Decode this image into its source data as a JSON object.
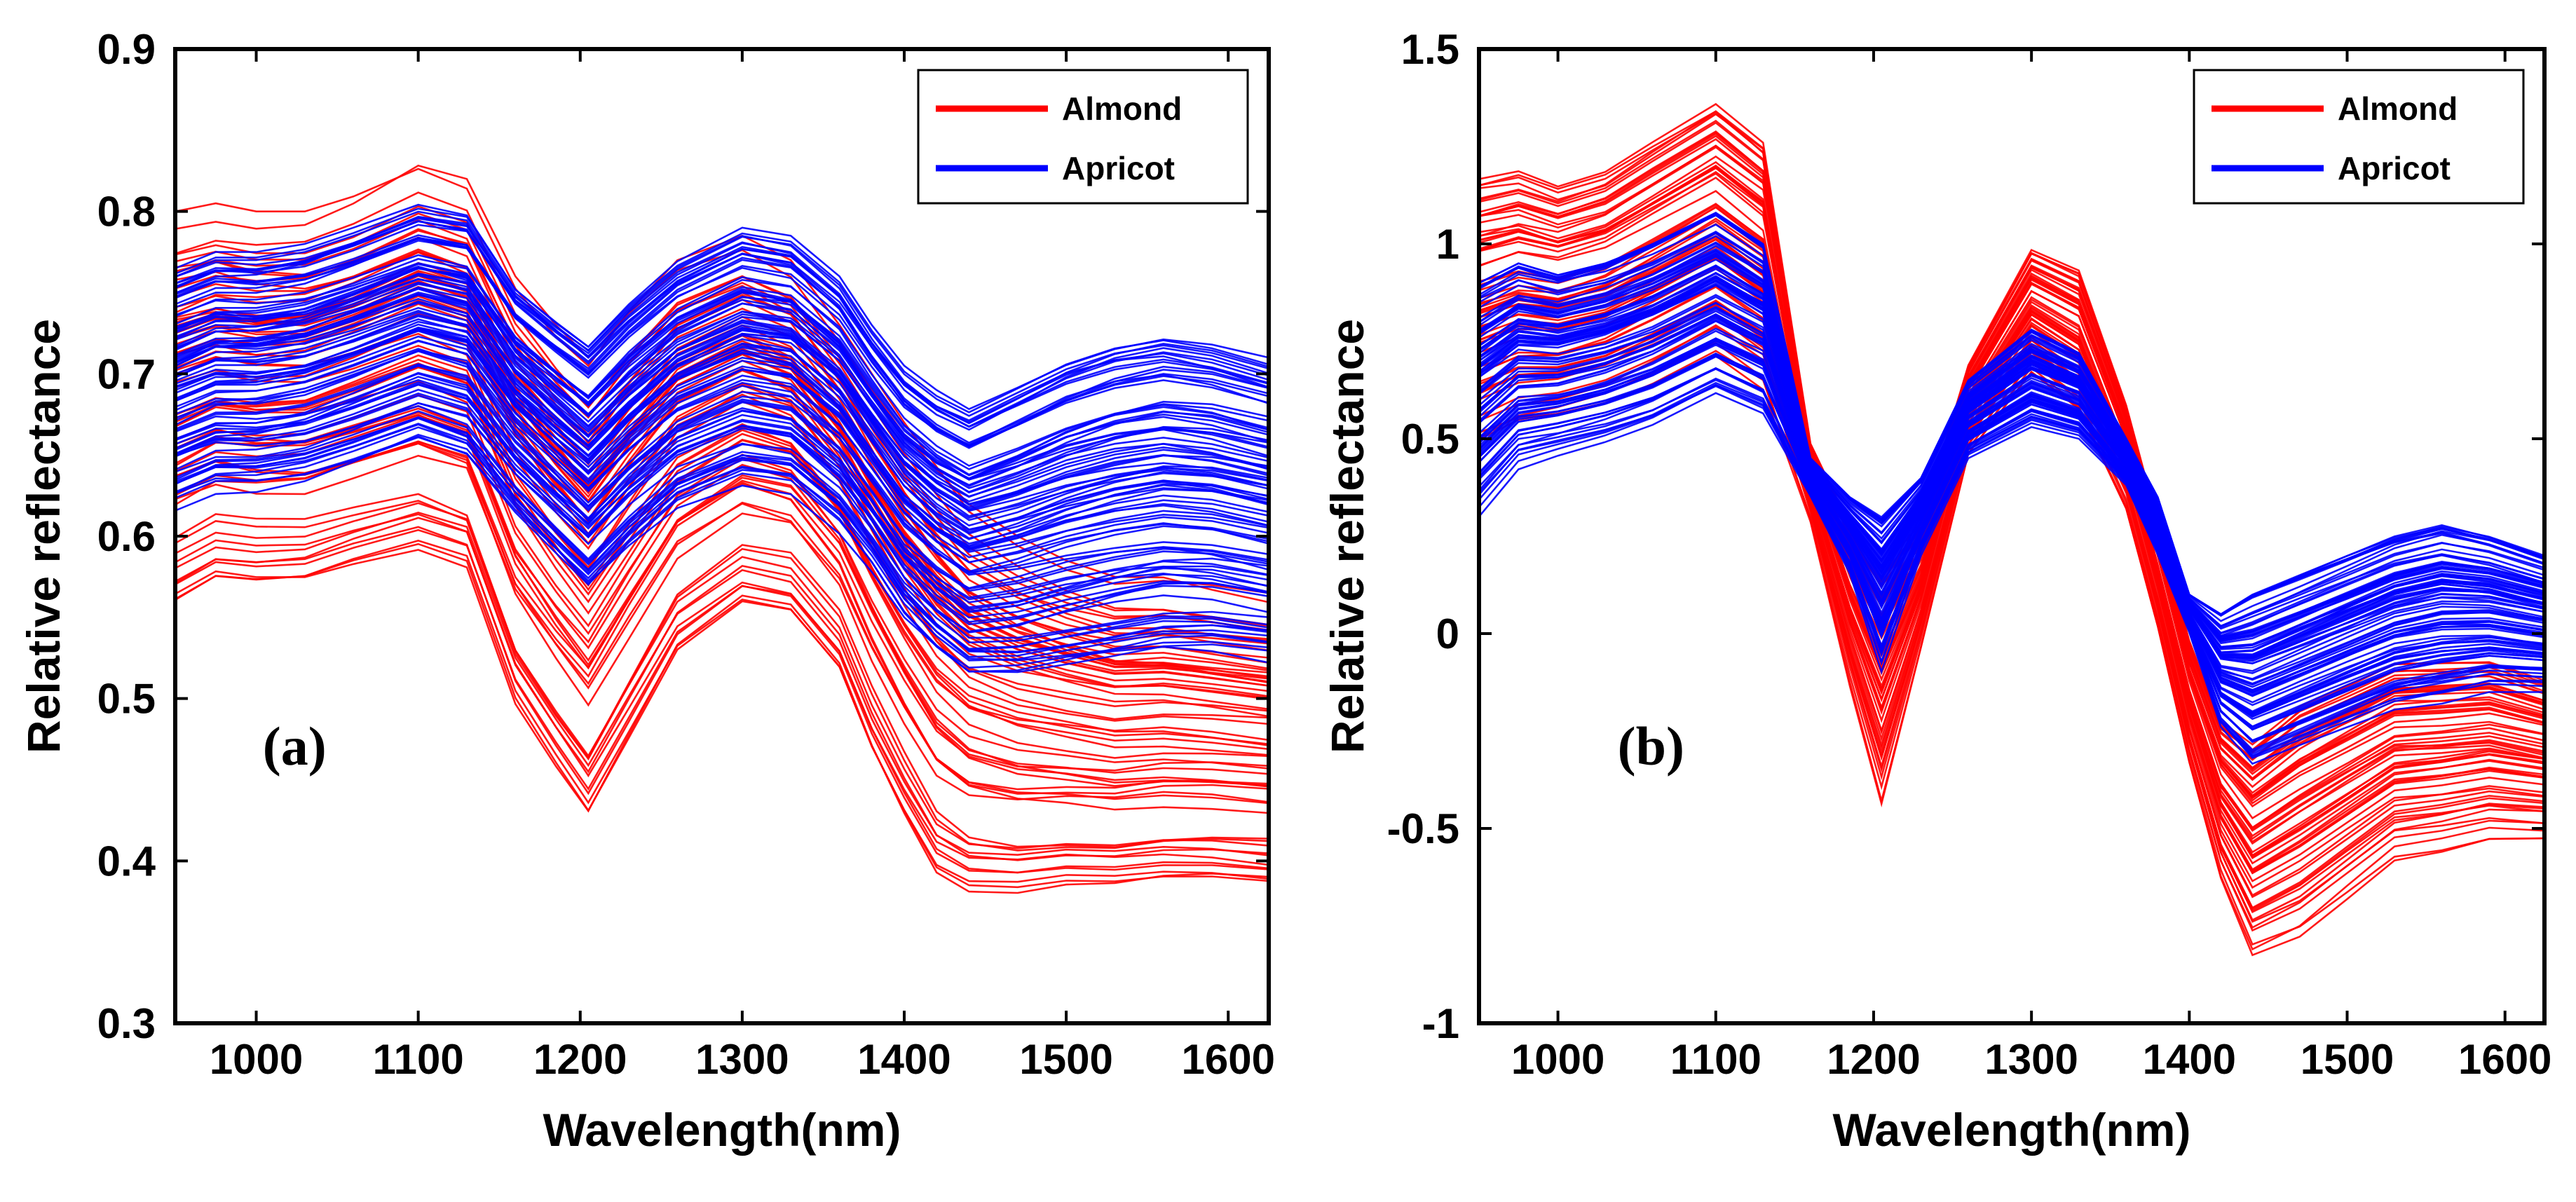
{
  "colors": {
    "almond": "#ff0000",
    "apricot": "#0000ff",
    "axis": "#000000"
  },
  "chart_data": [
    {
      "type": "line",
      "panel_label": "(a)",
      "xlabel": "Wavelength(nm)",
      "ylabel": "Relative reflectance",
      "xlim": [
        950,
        1625
      ],
      "ylim": [
        0.3,
        0.9
      ],
      "xticks": [
        1000,
        1100,
        1200,
        1300,
        1400,
        1500,
        1600
      ],
      "xtick_labels": [
        "1000",
        "1100",
        "1200",
        "1300",
        "1400",
        "1500",
        "1600"
      ],
      "yticks": [
        0.3,
        0.4,
        0.5,
        0.6,
        0.7,
        0.8,
        0.9
      ],
      "ytick_labels": [
        "0.3",
        "0.4",
        "0.5",
        "0.6",
        "0.7",
        "0.8",
        "0.9"
      ],
      "legend": {
        "position": "top-right",
        "entries": [
          "Almond",
          "Apricot"
        ]
      },
      "x": [
        950,
        975,
        1000,
        1030,
        1060,
        1100,
        1130,
        1160,
        1185,
        1205,
        1230,
        1260,
        1300,
        1330,
        1360,
        1380,
        1400,
        1420,
        1440,
        1470,
        1500,
        1530,
        1560,
        1590,
        1625
      ],
      "series": [
        {
          "name": "Almond",
          "color": "#ff0000",
          "count": 60,
          "lower": [
            0.55,
            0.565,
            0.563,
            0.565,
            0.575,
            0.585,
            0.575,
            0.49,
            0.45,
            0.42,
            0.465,
            0.52,
            0.55,
            0.545,
            0.51,
            0.46,
            0.42,
            0.385,
            0.375,
            0.375,
            0.38,
            0.38,
            0.383,
            0.383,
            0.38
          ],
          "upper": [
            0.8,
            0.805,
            0.8,
            0.8,
            0.81,
            0.83,
            0.82,
            0.76,
            0.73,
            0.71,
            0.74,
            0.77,
            0.785,
            0.77,
            0.73,
            0.7,
            0.67,
            0.645,
            0.62,
            0.6,
            0.585,
            0.575,
            0.575,
            0.57,
            0.565
          ]
        },
        {
          "name": "Apricot",
          "color": "#0000ff",
          "count": 90,
          "lower": [
            0.615,
            0.625,
            0.625,
            0.63,
            0.64,
            0.655,
            0.645,
            0.61,
            0.585,
            0.565,
            0.59,
            0.615,
            0.63,
            0.625,
            0.6,
            0.575,
            0.545,
            0.525,
            0.51,
            0.51,
            0.515,
            0.52,
            0.525,
            0.525,
            0.52
          ],
          "upper": [
            0.765,
            0.775,
            0.775,
            0.78,
            0.79,
            0.805,
            0.8,
            0.755,
            0.735,
            0.72,
            0.745,
            0.77,
            0.79,
            0.785,
            0.76,
            0.73,
            0.705,
            0.69,
            0.68,
            0.695,
            0.71,
            0.72,
            0.725,
            0.72,
            0.71
          ]
        }
      ]
    },
    {
      "type": "line",
      "panel_label": "(b)",
      "xlabel": "Wavelength(nm)",
      "ylabel": "Relative reflectance",
      "xlim": [
        950,
        1625
      ],
      "ylim": [
        -1,
        1.5
      ],
      "xticks": [
        1000,
        1100,
        1200,
        1300,
        1400,
        1500,
        1600
      ],
      "xtick_labels": [
        "1000",
        "1100",
        "1200",
        "1300",
        "1400",
        "1500",
        "1600"
      ],
      "yticks": [
        -1,
        -0.5,
        0,
        0.5,
        1,
        1.5
      ],
      "ytick_labels": [
        "-1",
        "-0.5",
        "0",
        "0.5",
        "1",
        "1.5"
      ],
      "legend": {
        "position": "top-right",
        "entries": [
          "Almond",
          "Apricot"
        ]
      },
      "x": [
        950,
        975,
        1000,
        1030,
        1060,
        1100,
        1130,
        1160,
        1185,
        1205,
        1230,
        1260,
        1300,
        1330,
        1360,
        1380,
        1400,
        1420,
        1440,
        1470,
        1500,
        1530,
        1560,
        1590,
        1625
      ],
      "series": [
        {
          "name": "Almond",
          "color": "#ff0000",
          "count": 60,
          "lower": [
            0.45,
            0.5,
            0.52,
            0.55,
            0.6,
            0.68,
            0.6,
            0.28,
            -0.15,
            -0.46,
            -0.05,
            0.45,
            0.65,
            0.55,
            0.3,
            0.0,
            -0.35,
            -0.65,
            -0.85,
            -0.8,
            -0.7,
            -0.6,
            -0.58,
            -0.55,
            -0.55
          ],
          "upper": [
            1.2,
            1.22,
            1.18,
            1.22,
            1.3,
            1.4,
            1.3,
            0.5,
            0.3,
            0.2,
            0.3,
            0.7,
            1.0,
            0.95,
            0.6,
            0.3,
            0.0,
            -0.2,
            -0.25,
            -0.15,
            -0.1,
            -0.05,
            -0.05,
            -0.05,
            -0.1
          ]
        },
        {
          "name": "Apricot",
          "color": "#0000ff",
          "count": 90,
          "lower": [
            0.3,
            0.42,
            0.45,
            0.48,
            0.52,
            0.6,
            0.55,
            0.35,
            0.15,
            -0.1,
            0.2,
            0.45,
            0.53,
            0.5,
            0.38,
            0.2,
            0.0,
            -0.25,
            -0.35,
            -0.3,
            -0.25,
            -0.2,
            -0.18,
            -0.15,
            -0.15
          ],
          "upper": [
            0.9,
            0.95,
            0.92,
            0.95,
            1.0,
            1.08,
            1.0,
            0.45,
            0.35,
            0.3,
            0.4,
            0.65,
            0.78,
            0.72,
            0.5,
            0.35,
            0.1,
            0.05,
            0.1,
            0.15,
            0.2,
            0.25,
            0.28,
            0.25,
            0.2
          ]
        }
      ]
    }
  ]
}
